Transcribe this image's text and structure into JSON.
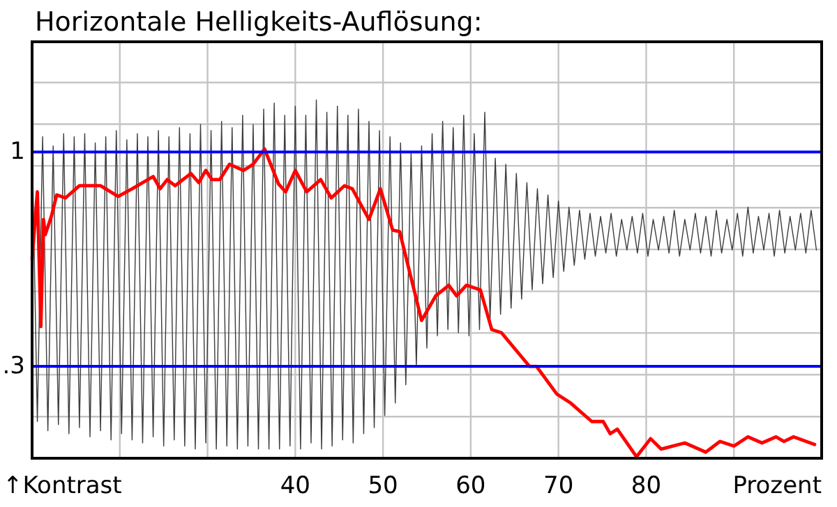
{
  "chart_data": {
    "type": "line",
    "title": "Horizontale Helligkeits-Auflösung:",
    "xlabel": "Prozent",
    "ylabel": "↑Kontrast",
    "xlim": [
      10,
      100
    ],
    "ylim": [
      0,
      1.36
    ],
    "xticks": [
      {
        "value": 20,
        "label": null
      },
      {
        "value": 30,
        "label": null
      },
      40,
      50,
      60,
      70,
      80,
      {
        "value": 90,
        "label": null
      }
    ],
    "yticks": [
      {
        "value": 0.136,
        "label": null
      },
      {
        "value": 0.273,
        "label": null
      },
      {
        "value": 0.409,
        "label": null
      },
      {
        "value": 0.545,
        "label": null
      },
      {
        "value": 0.682,
        "label": null
      },
      {
        "value": 0.818,
        "label": null
      },
      {
        "value": 0.955,
        "label": null
      },
      {
        "value": 1.091,
        "label": null
      },
      {
        "value": 1.227,
        "label": null
      }
    ],
    "grid": true,
    "tick_labels": "x",
    "marker": "none",
    "line_style": "solid",
    "ref_lines": [
      {
        "axis": "y",
        "value": 1,
        "label": "1",
        "color": "#0000ff"
      },
      {
        "axis": "y",
        "value": 0.3,
        "label": ".3",
        "color": "#0000ff"
      }
    ],
    "series": [
      {
        "color": "#3c3c3c",
        "x": [
          10,
          10.6,
          11.2,
          11.8,
          12.4,
          13,
          13.6,
          14.2,
          14.8,
          15.4,
          16,
          16.6,
          17.2,
          17.8,
          18.4,
          19,
          19.6,
          20.2,
          20.8,
          21.4,
          22,
          22.6,
          23.2,
          23.8,
          24.4,
          25,
          25.6,
          26.2,
          26.8,
          27.4,
          28,
          28.6,
          29.2,
          29.8,
          30.4,
          31,
          31.6,
          32.2,
          32.8,
          33.4,
          34,
          34.6,
          35.2,
          35.8,
          36.4,
          37,
          37.6,
          38.2,
          38.8,
          39.4,
          40,
          40.6,
          41.2,
          41.8,
          42.4,
          43,
          43.6,
          44.2,
          44.8,
          45.4,
          46,
          46.6,
          47.2,
          47.8,
          48.4,
          49,
          49.6,
          50.2,
          50.8,
          51.4,
          52,
          52.6,
          53.2,
          53.8,
          54.4,
          55,
          55.6,
          56.2,
          56.8,
          57.4,
          58,
          58.6,
          59.2,
          59.8,
          60.4,
          61,
          61.6,
          62.2,
          62.8,
          63.4,
          64,
          64.6,
          65.2,
          65.8,
          66.4,
          67,
          67.6,
          68.2,
          68.8,
          69.4,
          70,
          70.6,
          71.2,
          71.8,
          72.4,
          73,
          73.6,
          74.2,
          74.8,
          75.4,
          76,
          76.6,
          77.2,
          77.8,
          78.4,
          79,
          79.6,
          80.2,
          80.8,
          81.4,
          82,
          82.6,
          83.2,
          83.8,
          84.4,
          85,
          85.6,
          86.2,
          86.8,
          87.4,
          88,
          88.6,
          89.2,
          89.8,
          90.4,
          91,
          91.6,
          92.2,
          92.8,
          93.4,
          94,
          94.6,
          95.2,
          95.8,
          96.4,
          97,
          97.6,
          98.2,
          98.8,
          99.4
        ],
        "values": [
          1.04,
          0.12,
          1.05,
          0.09,
          1.02,
          0.11,
          1.06,
          0.08,
          1.05,
          0.1,
          1.06,
          0.07,
          1.03,
          0.09,
          1.05,
          0.06,
          1.07,
          0.08,
          1.04,
          0.06,
          1.06,
          0.05,
          1.05,
          0.07,
          1.07,
          0.04,
          1.05,
          0.06,
          1.08,
          0.04,
          1.06,
          0.03,
          1.09,
          0.05,
          1.07,
          0.03,
          1.1,
          0.04,
          1.08,
          0.03,
          1.12,
          0.04,
          1.09,
          0.03,
          1.14,
          0.03,
          1.16,
          0.03,
          1.12,
          0.04,
          1.15,
          0.03,
          1.12,
          0.05,
          1.17,
          0.03,
          1.13,
          0.04,
          1.15,
          0.06,
          1.12,
          0.05,
          1.14,
          0.08,
          1.1,
          0.1,
          1.07,
          0.14,
          1.05,
          0.18,
          1.03,
          0.24,
          1.0,
          0.3,
          1.02,
          0.36,
          1.06,
          0.4,
          1.1,
          0.42,
          1.08,
          0.41,
          1.12,
          0.4,
          1.06,
          0.42,
          1.13,
          0.45,
          0.98,
          0.47,
          0.96,
          0.49,
          0.93,
          0.52,
          0.9,
          0.55,
          0.88,
          0.57,
          0.86,
          0.59,
          0.84,
          0.61,
          0.82,
          0.63,
          0.81,
          0.65,
          0.8,
          0.66,
          0.79,
          0.67,
          0.8,
          0.66,
          0.78,
          0.68,
          0.79,
          0.67,
          0.8,
          0.66,
          0.78,
          0.68,
          0.79,
          0.67,
          0.81,
          0.66,
          0.78,
          0.68,
          0.8,
          0.67,
          0.79,
          0.66,
          0.81,
          0.67,
          0.78,
          0.68,
          0.8,
          0.66,
          0.82,
          0.67,
          0.79,
          0.68,
          0.8,
          0.66,
          0.81,
          0.67,
          0.79,
          0.68,
          0.8,
          0.67,
          0.81,
          0.68
        ]
      },
      {
        "color": "#ff0000",
        "x": [
          10,
          10.6,
          11,
          11.3,
          11.5,
          12.2,
          12.8,
          13.8,
          15.4,
          17.8,
          19.8,
          21.4,
          23.8,
          24.6,
          25.4,
          26.3,
          28.1,
          29,
          29.8,
          30.5,
          31.4,
          32.5,
          34.1,
          35.2,
          36.5,
          38.1,
          38.9,
          40,
          41.3,
          42.9,
          44.1,
          45.6,
          46.5,
          48.4,
          49.7,
          51.1,
          51.9,
          54.4,
          56,
          57.5,
          58.4,
          59.5,
          61.1,
          62.4,
          63.5,
          66.7,
          67.5,
          69.8,
          71.4,
          73.8,
          75.1,
          75.9,
          76.7,
          78.9,
          80.5,
          81.7,
          84.4,
          86.8,
          88.4,
          90,
          91.6,
          93.2,
          94.8,
          95.7,
          96.8,
          99.2
        ],
        "values": [
          0.65,
          0.87,
          0.43,
          0.78,
          0.73,
          0.79,
          0.86,
          0.85,
          0.89,
          0.89,
          0.855,
          0.88,
          0.92,
          0.88,
          0.91,
          0.89,
          0.93,
          0.9,
          0.94,
          0.91,
          0.91,
          0.96,
          0.94,
          0.96,
          1.01,
          0.895,
          0.87,
          0.94,
          0.87,
          0.91,
          0.85,
          0.89,
          0.88,
          0.78,
          0.88,
          0.745,
          0.74,
          0.45,
          0.53,
          0.565,
          0.53,
          0.565,
          0.55,
          0.42,
          0.41,
          0.3,
          0.3,
          0.21,
          0.18,
          0.12,
          0.12,
          0.08,
          0.095,
          0.005,
          0.064,
          0.03,
          0.05,
          0.02,
          0.055,
          0.04,
          0.07,
          0.05,
          0.07,
          0.055,
          0.07,
          0.045
        ]
      }
    ]
  }
}
